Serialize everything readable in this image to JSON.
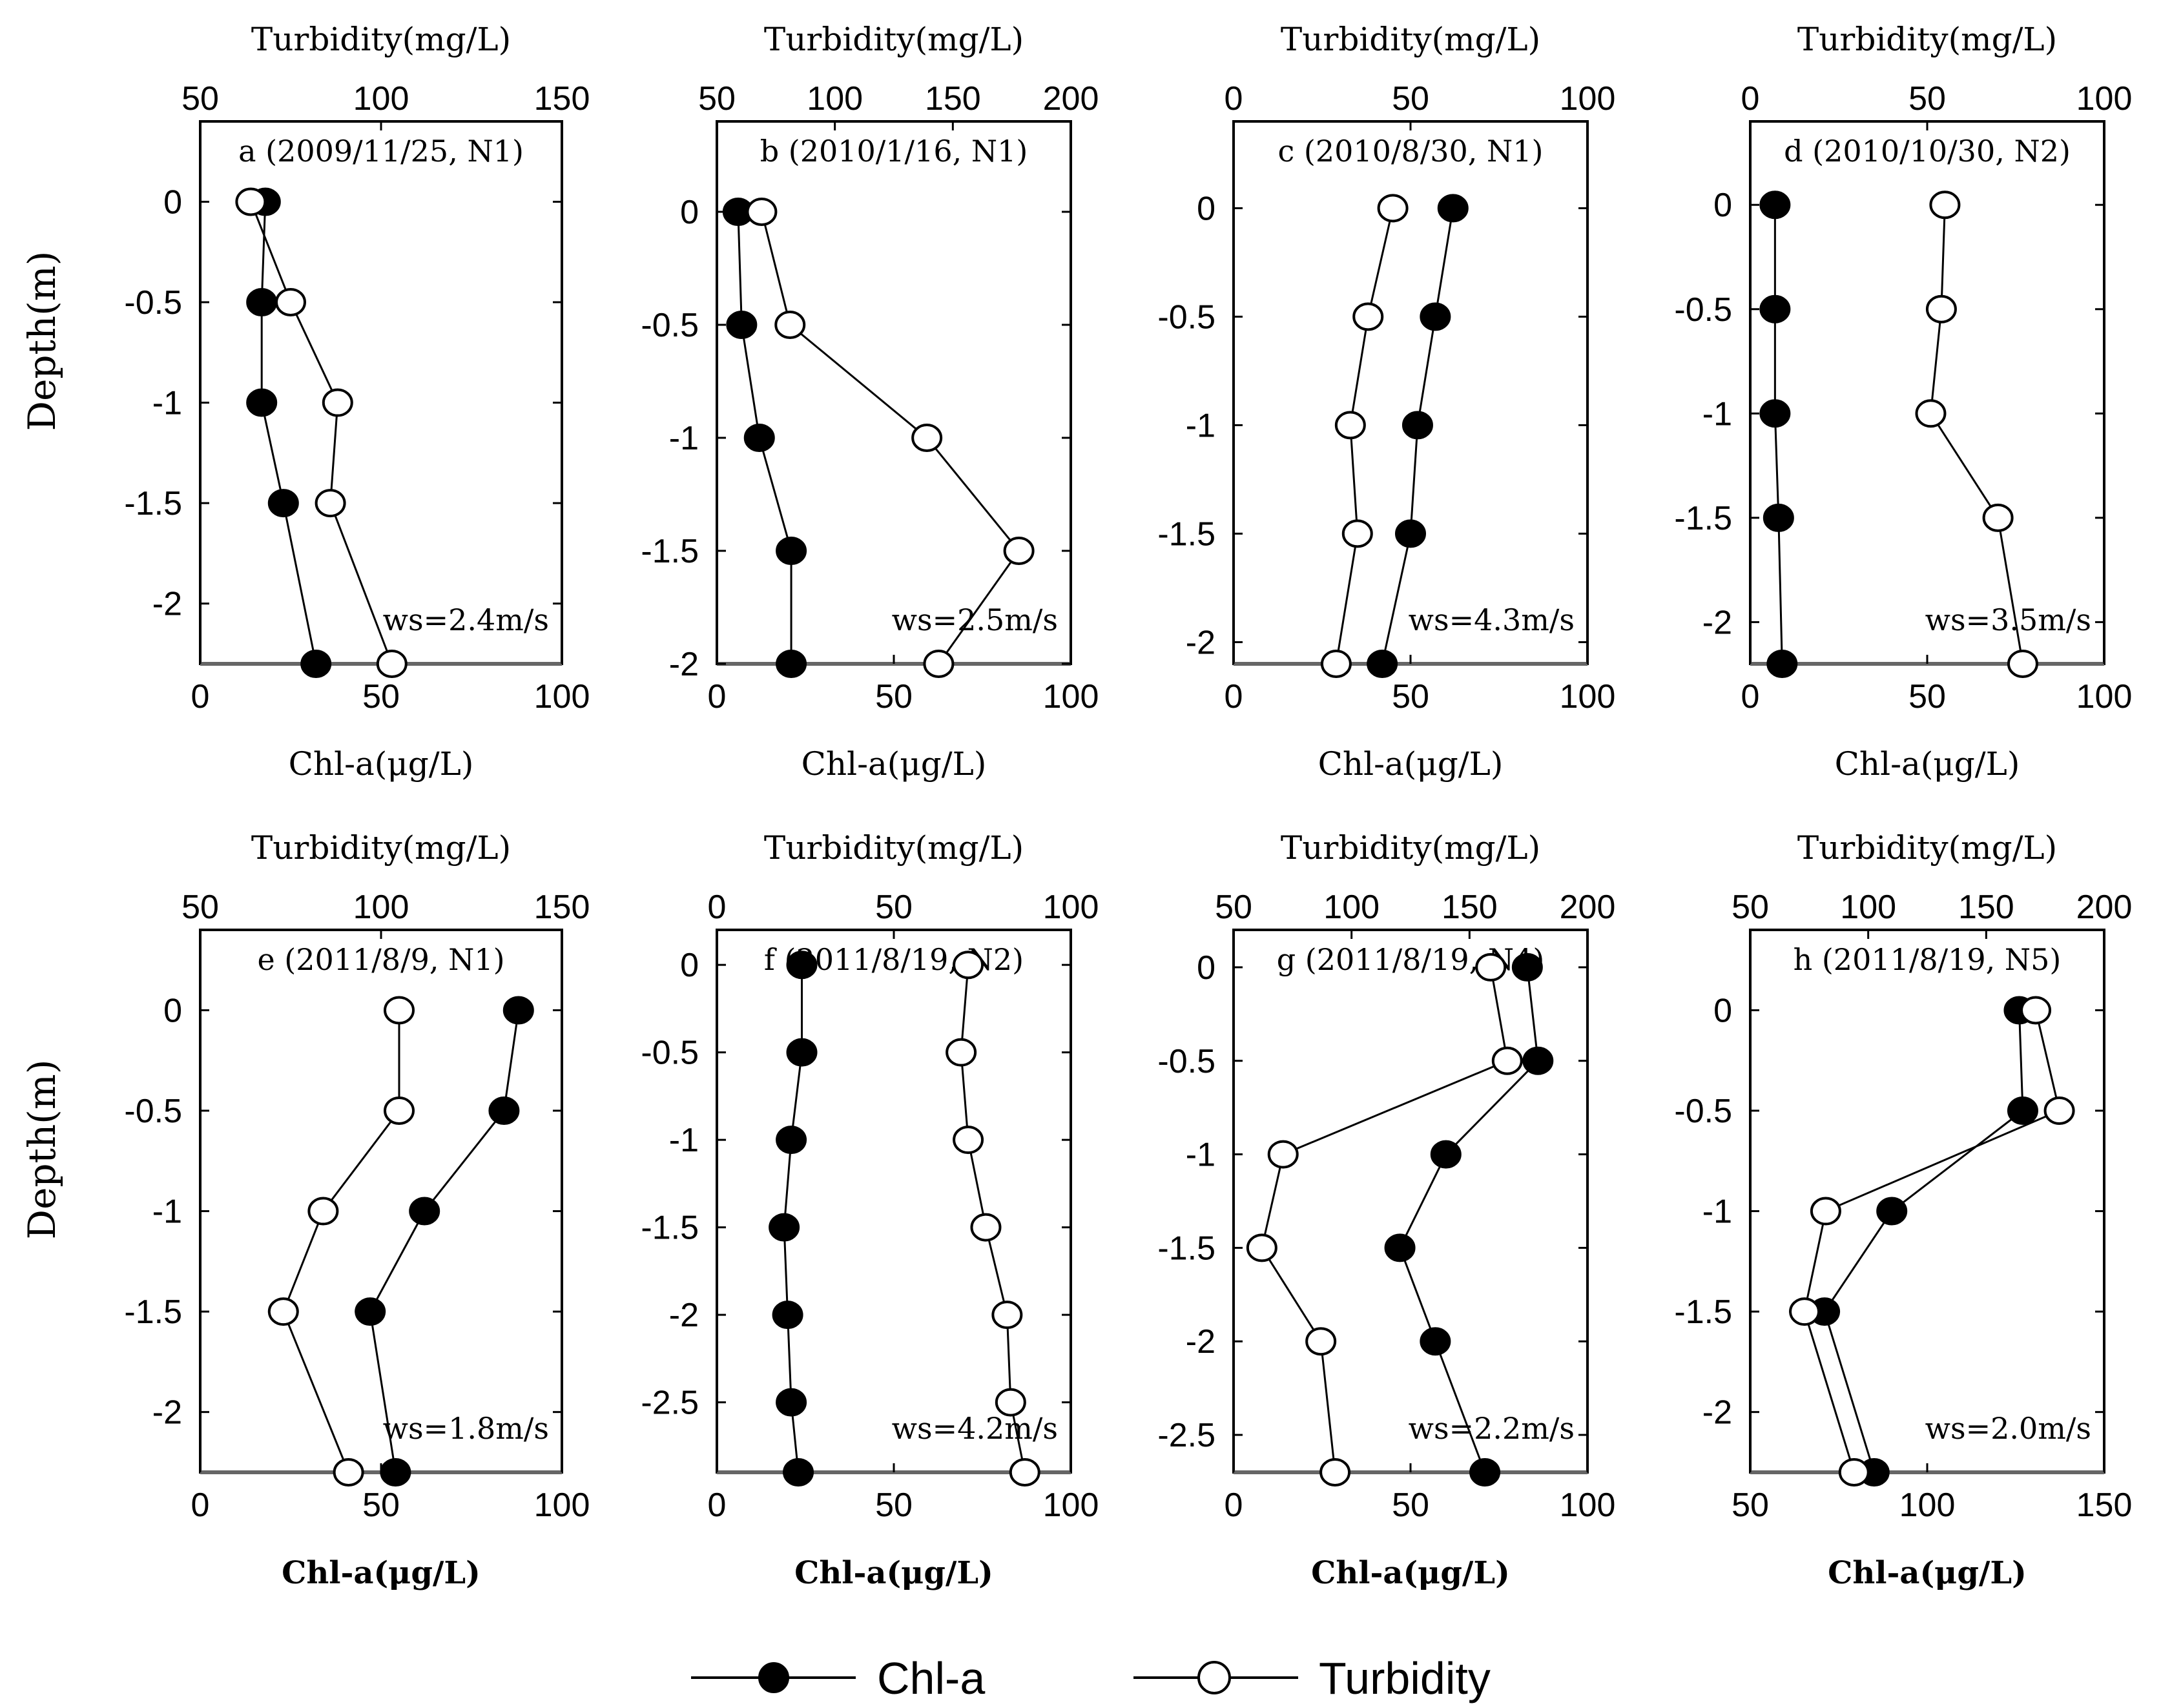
{
  "legend": {
    "chl_label": "Chl-a",
    "turb_label": "Turbidity"
  },
  "colors": {
    "chl_fill": "#000000",
    "turb_fill": "#ffffff",
    "line": "#000000",
    "frame": "#000000"
  },
  "chart_data": [
    {
      "type": "line",
      "panel": "a",
      "title": "a (2009/11/25, N1)",
      "ylabel": "Depth(m)",
      "top_xlabel": "Turbidity(mg/L)",
      "bottom_xlabel": "Chl-a(μg/L)",
      "bottom_xlabel_bold": false,
      "ws": "ws=2.4m/s",
      "top_xlim": [
        50,
        150
      ],
      "top_ticks": [
        50,
        100,
        150
      ],
      "bottom_xlim": [
        0,
        100
      ],
      "bottom_ticks": [
        0,
        50,
        100
      ],
      "ylim": [
        -2.3,
        0.4
      ],
      "yticks": [
        0,
        -0.5,
        -1,
        -1.5,
        -2
      ],
      "depths": [
        0,
        -0.5,
        -1,
        -1.5,
        -2.3
      ],
      "series": [
        {
          "name": "Chl-a",
          "axis": "bottom",
          "values": [
            18,
            17,
            17,
            23,
            32
          ]
        },
        {
          "name": "Turbidity",
          "axis": "top",
          "values": [
            64,
            75,
            88,
            86,
            103
          ]
        }
      ]
    },
    {
      "type": "line",
      "panel": "b",
      "title": "b (2010/1/16, N1)",
      "ylabel": "",
      "top_xlabel": "Turbidity(mg/L)",
      "bottom_xlabel": "Chl-a(μg/L)",
      "bottom_xlabel_bold": false,
      "ws": "ws=2.5m/s",
      "top_xlim": [
        50,
        200
      ],
      "top_ticks": [
        50,
        100,
        150,
        200
      ],
      "bottom_xlim": [
        0,
        100
      ],
      "bottom_ticks": [
        0,
        50,
        100
      ],
      "ylim": [
        -2.0,
        0.4
      ],
      "yticks": [
        0,
        -0.5,
        -1,
        -1.5,
        -2
      ],
      "depths": [
        0,
        -0.5,
        -1,
        -1.5,
        -2
      ],
      "series": [
        {
          "name": "Chl-a",
          "axis": "bottom",
          "values": [
            6,
            7,
            12,
            21,
            21
          ]
        },
        {
          "name": "Turbidity",
          "axis": "top",
          "values": [
            69,
            81,
            139,
            178,
            144
          ]
        }
      ]
    },
    {
      "type": "line",
      "panel": "c",
      "title": "c (2010/8/30, N1)",
      "ylabel": "",
      "top_xlabel": "Turbidity(mg/L)",
      "bottom_xlabel": "Chl-a(μg/L)",
      "bottom_xlabel_bold": false,
      "ws": "ws=4.3m/s",
      "top_xlim": [
        0,
        100
      ],
      "top_ticks": [
        0,
        50,
        100
      ],
      "bottom_xlim": [
        0,
        100
      ],
      "bottom_ticks": [
        0,
        50,
        100
      ],
      "ylim": [
        -2.1,
        0.4
      ],
      "yticks": [
        0,
        -0.5,
        -1,
        -1.5,
        -2
      ],
      "depths": [
        0,
        -0.5,
        -1,
        -1.5,
        -2.1
      ],
      "series": [
        {
          "name": "Chl-a",
          "axis": "bottom",
          "values": [
            62,
            57,
            52,
            50,
            42
          ]
        },
        {
          "name": "Turbidity",
          "axis": "top",
          "values": [
            45,
            38,
            33,
            35,
            29
          ]
        }
      ]
    },
    {
      "type": "line",
      "panel": "d",
      "title": "d (2010/10/30, N2)",
      "ylabel": "",
      "top_xlabel": "Turbidity(mg/L)",
      "bottom_xlabel": "Chl-a(μg/L)",
      "bottom_xlabel_bold": false,
      "ws": "ws=3.5m/s",
      "top_xlim": [
        0,
        100
      ],
      "top_ticks": [
        0,
        50,
        100
      ],
      "bottom_xlim": [
        0,
        100
      ],
      "bottom_ticks": [
        0,
        50,
        100
      ],
      "ylim": [
        -2.2,
        0.4
      ],
      "yticks": [
        0,
        -0.5,
        -1,
        -1.5,
        -2
      ],
      "depths": [
        0,
        -0.5,
        -1,
        -1.5,
        -2.2
      ],
      "series": [
        {
          "name": "Chl-a",
          "axis": "bottom",
          "values": [
            7,
            7,
            7,
            8,
            9
          ]
        },
        {
          "name": "Turbidity",
          "axis": "top",
          "values": [
            55,
            54,
            51,
            70,
            77
          ]
        }
      ]
    },
    {
      "type": "line",
      "panel": "e",
      "title": "e (2011/8/9, N1)",
      "ylabel": "Depth(m)",
      "top_xlabel": "Turbidity(mg/L)",
      "bottom_xlabel": "Chl-a(μg/L)",
      "bottom_xlabel_bold": true,
      "ws": "ws=1.8m/s",
      "top_xlim": [
        50,
        150
      ],
      "top_ticks": [
        50,
        100,
        150
      ],
      "bottom_xlim": [
        0,
        100
      ],
      "bottom_ticks": [
        0,
        50,
        100
      ],
      "ylim": [
        -2.3,
        0.4
      ],
      "yticks": [
        0,
        -0.5,
        -1,
        -1.5,
        -2
      ],
      "depths": [
        0,
        -0.5,
        -1,
        -1.5,
        -2.3
      ],
      "series": [
        {
          "name": "Chl-a",
          "axis": "bottom",
          "values": [
            88,
            84,
            62,
            47,
            54
          ]
        },
        {
          "name": "Turbidity",
          "axis": "top",
          "values": [
            105,
            105,
            84,
            73,
            91
          ]
        }
      ]
    },
    {
      "type": "line",
      "panel": "f",
      "title": "f (2011/8/19, N2)",
      "ylabel": "",
      "top_xlabel": "Turbidity(mg/L)",
      "bottom_xlabel": "Chl-a(μg/L)",
      "bottom_xlabel_bold": true,
      "ws": "ws=4.2m/s",
      "top_xlim": [
        0,
        100
      ],
      "top_ticks": [
        0,
        50,
        100
      ],
      "bottom_xlim": [
        0,
        100
      ],
      "bottom_ticks": [
        0,
        50,
        100
      ],
      "ylim": [
        -2.9,
        0.2
      ],
      "yticks": [
        0,
        -0.5,
        -1,
        -1.5,
        -2,
        -2.5
      ],
      "depths": [
        0,
        -0.5,
        -1,
        -1.5,
        -2,
        -2.5,
        -2.9
      ],
      "series": [
        {
          "name": "Chl-a",
          "axis": "bottom",
          "values": [
            24,
            24,
            21,
            19,
            20,
            21,
            23
          ]
        },
        {
          "name": "Turbidity",
          "axis": "top",
          "values": [
            71,
            69,
            71,
            76,
            82,
            83,
            87
          ]
        }
      ]
    },
    {
      "type": "line",
      "panel": "g",
      "title": "g (2011/8/19, N4)",
      "ylabel": "",
      "top_xlabel": "Turbidity(mg/L)",
      "bottom_xlabel": "Chl-a(μg/L)",
      "bottom_xlabel_bold": true,
      "ws": "ws=2.2m/s",
      "top_xlim": [
        50,
        200
      ],
      "top_ticks": [
        50,
        100,
        150,
        200
      ],
      "bottom_xlim": [
        0,
        100
      ],
      "bottom_ticks": [
        0,
        50,
        100
      ],
      "ylim": [
        -2.7,
        0.2
      ],
      "yticks": [
        0,
        -0.5,
        -1,
        -1.5,
        -2,
        -2.5
      ],
      "depths": [
        0,
        -0.5,
        -1,
        -1.5,
        -2,
        -2.7
      ],
      "series": [
        {
          "name": "Chl-a",
          "axis": "bottom",
          "values": [
            83,
            86,
            60,
            47,
            57,
            71
          ]
        },
        {
          "name": "Turbidity",
          "axis": "top",
          "values": [
            159,
            166,
            71,
            62,
            87,
            93
          ]
        }
      ]
    },
    {
      "type": "line",
      "panel": "h",
      "title": "h (2011/8/19, N5)",
      "ylabel": "",
      "top_xlabel": "Turbidity(mg/L)",
      "bottom_xlabel": "Chl-a(μg/L)",
      "bottom_xlabel_bold": true,
      "ws": "ws=2.0m/s",
      "top_xlim": [
        50,
        200
      ],
      "top_ticks": [
        50,
        100,
        150,
        200
      ],
      "bottom_xlim": [
        50,
        150
      ],
      "bottom_ticks": [
        50,
        100,
        150
      ],
      "ylim": [
        -2.3,
        0.4
      ],
      "yticks": [
        0,
        -0.5,
        -1,
        -1.5,
        -2
      ],
      "depths": [
        0,
        -0.5,
        -1,
        -1.5,
        -2.3
      ],
      "series": [
        {
          "name": "Chl-a",
          "axis": "bottom",
          "values": [
            126,
            127,
            90,
            71,
            85
          ]
        },
        {
          "name": "Turbidity",
          "axis": "top",
          "values": [
            171,
            181,
            82,
            73,
            94
          ]
        }
      ]
    }
  ]
}
